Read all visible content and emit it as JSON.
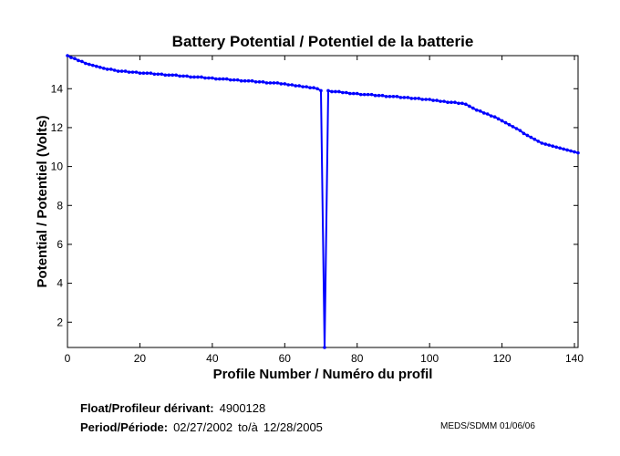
{
  "chart_data": {
    "type": "line",
    "title": "Battery Potential / Potentiel de la batterie",
    "xlabel": "Profile Number / Numéro du profil",
    "ylabel": "Potential / Potentiel (Volts)",
    "xlim": [
      0,
      141
    ],
    "ylim": [
      0.7,
      15.7
    ],
    "xticks": [
      0,
      20,
      40,
      60,
      80,
      100,
      120,
      140
    ],
    "yticks": [
      2,
      4,
      6,
      8,
      10,
      12,
      14
    ],
    "grid": false,
    "series_color": "#0000ff",
    "x": [
      0,
      1,
      2,
      3,
      4,
      5,
      6,
      7,
      8,
      9,
      10,
      11,
      12,
      13,
      14,
      15,
      16,
      17,
      18,
      19,
      20,
      21,
      22,
      23,
      24,
      25,
      26,
      27,
      28,
      29,
      30,
      31,
      32,
      33,
      34,
      35,
      36,
      37,
      38,
      39,
      40,
      41,
      42,
      43,
      44,
      45,
      46,
      47,
      48,
      49,
      50,
      51,
      52,
      53,
      54,
      55,
      56,
      57,
      58,
      59,
      60,
      61,
      62,
      63,
      64,
      65,
      66,
      67,
      68,
      69,
      70,
      71,
      72,
      73,
      74,
      75,
      76,
      77,
      78,
      79,
      80,
      81,
      82,
      83,
      84,
      85,
      86,
      87,
      88,
      89,
      90,
      91,
      92,
      93,
      94,
      95,
      96,
      97,
      98,
      99,
      100,
      101,
      102,
      103,
      104,
      105,
      106,
      107,
      108,
      109,
      110,
      111,
      112,
      113,
      114,
      115,
      116,
      117,
      118,
      119,
      120,
      121,
      122,
      123,
      124,
      125,
      126,
      127,
      128,
      129,
      130,
      131,
      132,
      133,
      134,
      135,
      136,
      137,
      138,
      139,
      140,
      141
    ],
    "y": [
      15.7,
      15.6,
      15.55,
      15.45,
      15.4,
      15.3,
      15.25,
      15.2,
      15.15,
      15.1,
      15.05,
      15.0,
      15.0,
      14.95,
      14.9,
      14.9,
      14.9,
      14.85,
      14.85,
      14.85,
      14.8,
      14.8,
      14.8,
      14.8,
      14.75,
      14.75,
      14.75,
      14.7,
      14.7,
      14.7,
      14.7,
      14.65,
      14.65,
      14.65,
      14.6,
      14.6,
      14.6,
      14.6,
      14.55,
      14.55,
      14.55,
      14.5,
      14.5,
      14.5,
      14.5,
      14.45,
      14.45,
      14.45,
      14.4,
      14.4,
      14.4,
      14.4,
      14.35,
      14.35,
      14.35,
      14.3,
      14.3,
      14.3,
      14.3,
      14.25,
      14.25,
      14.2,
      14.2,
      14.15,
      14.15,
      14.1,
      14.1,
      14.05,
      14.05,
      14.0,
      13.9,
      0.7,
      13.9,
      13.85,
      13.85,
      13.85,
      13.8,
      13.8,
      13.75,
      13.75,
      13.75,
      13.7,
      13.7,
      13.7,
      13.7,
      13.65,
      13.65,
      13.65,
      13.6,
      13.6,
      13.6,
      13.6,
      13.55,
      13.55,
      13.55,
      13.5,
      13.5,
      13.5,
      13.45,
      13.45,
      13.45,
      13.4,
      13.4,
      13.35,
      13.35,
      13.3,
      13.3,
      13.3,
      13.25,
      13.25,
      13.2,
      13.1,
      13.0,
      12.9,
      12.85,
      12.75,
      12.7,
      12.6,
      12.55,
      12.45,
      12.35,
      12.25,
      12.15,
      12.05,
      11.95,
      11.85,
      11.7,
      11.6,
      11.5,
      11.4,
      11.3,
      11.2,
      11.15,
      11.1,
      11.05,
      11.0,
      10.95,
      10.9,
      10.85,
      10.8,
      10.75,
      10.7
    ]
  },
  "footer": {
    "float_label": "Float/Profileur dérivant:",
    "float_value": "4900128",
    "period_label": "Period/Période:",
    "period_start": "02/27/2002",
    "period_sep": "to/à",
    "period_end": "12/28/2005",
    "credit": "MEDS/SDMM  01/06/06"
  }
}
